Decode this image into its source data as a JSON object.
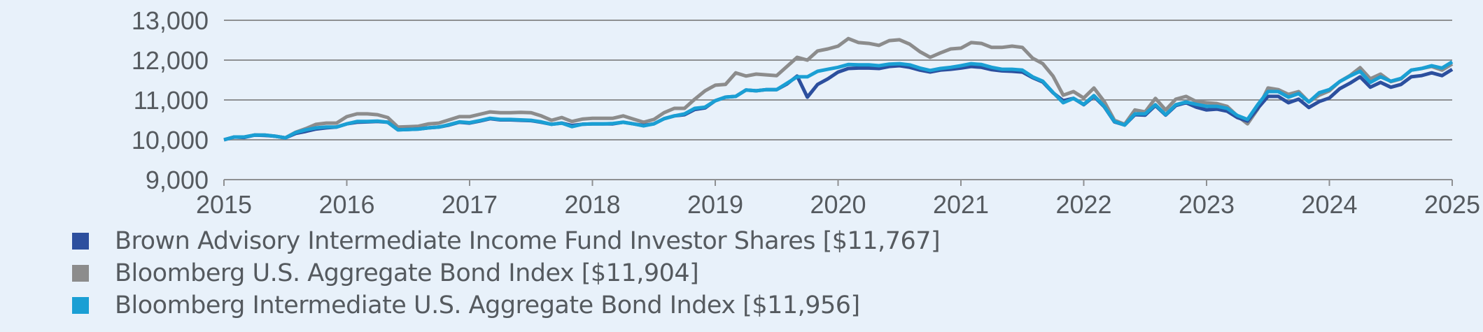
{
  "chart_data": {
    "type": "line",
    "title": "",
    "xlabel": "",
    "ylabel": "",
    "ylim": [
      9000,
      13000
    ],
    "xlim": [
      2015,
      2025
    ],
    "yticks": [
      "9,000",
      "10,000",
      "11,000",
      "12,000",
      "13,000"
    ],
    "ytick_values": [
      9000,
      10000,
      11000,
      12000,
      13000
    ],
    "xticks": [
      "2015",
      "2016",
      "2017",
      "2018",
      "2019",
      "2020",
      "2021",
      "2022",
      "2023",
      "2024",
      "2025"
    ],
    "xtick_values": [
      2015,
      2016,
      2017,
      2018,
      2019,
      2020,
      2021,
      2022,
      2023,
      2024,
      2025
    ],
    "grid": "horizontal",
    "legend_position": "bottom-left",
    "x_frequency": "monthly",
    "series": [
      {
        "name": "Brown Advisory Intermediate Income Fund Investor Shares",
        "legend_label": "Brown Advisory Intermediate Income Fund Investor Shares [$11,767]",
        "color": "#2c4f9e",
        "values": [
          10000,
          10070,
          10060,
          10120,
          10110,
          10090,
          10050,
          10160,
          10210,
          10270,
          10300,
          10320,
          10400,
          10440,
          10450,
          10460,
          10440,
          10250,
          10260,
          10270,
          10300,
          10320,
          10370,
          10440,
          10420,
          10470,
          10530,
          10500,
          10500,
          10490,
          10480,
          10440,
          10390,
          10420,
          10360,
          10390,
          10400,
          10400,
          10400,
          10440,
          10400,
          10360,
          10400,
          10530,
          10600,
          10630,
          10760,
          10800,
          10980,
          11070,
          11090,
          11250,
          11230,
          11260,
          11260,
          11400,
          11600,
          11070,
          11390,
          11530,
          11700,
          11790,
          11800,
          11800,
          11790,
          11840,
          11860,
          11820,
          11750,
          11700,
          11750,
          11770,
          11800,
          11840,
          11820,
          11760,
          11730,
          11720,
          11700,
          11560,
          11450,
          11180,
          10980,
          11040,
          10880,
          11090,
          10830,
          10450,
          10370,
          10630,
          10620,
          10860,
          10620,
          10860,
          10930,
          10820,
          10750,
          10770,
          10720,
          10560,
          10470,
          10790,
          11090,
          11090,
          10930,
          11020,
          10810,
          10960,
          11050,
          11280,
          11420,
          11580,
          11320,
          11440,
          11320,
          11390,
          11580,
          11610,
          11680,
          11610,
          11767
        ]
      },
      {
        "name": "Bloomberg U.S. Aggregate Bond Index",
        "legend_label": "Bloomberg U.S. Aggregate Bond Index [$11,904]",
        "color": "#8c8c8c",
        "values": [
          10000,
          10070,
          10070,
          10120,
          10120,
          10090,
          10050,
          10190,
          10280,
          10390,
          10420,
          10420,
          10580,
          10650,
          10650,
          10630,
          10560,
          10320,
          10330,
          10340,
          10400,
          10420,
          10500,
          10580,
          10580,
          10640,
          10700,
          10680,
          10680,
          10690,
          10680,
          10600,
          10490,
          10560,
          10460,
          10520,
          10540,
          10540,
          10540,
          10600,
          10520,
          10440,
          10510,
          10680,
          10790,
          10790,
          11020,
          11230,
          11370,
          11390,
          11680,
          11600,
          11650,
          11630,
          11610,
          11840,
          12070,
          12000,
          12230,
          12280,
          12350,
          12540,
          12440,
          12420,
          12370,
          12490,
          12510,
          12400,
          12210,
          12070,
          12180,
          12280,
          12300,
          12440,
          12420,
          12320,
          12320,
          12350,
          12320,
          12050,
          11910,
          11600,
          11120,
          11210,
          11050,
          11300,
          10960,
          10490,
          10390,
          10750,
          10700,
          11040,
          10750,
          11020,
          11090,
          10960,
          10930,
          10910,
          10840,
          10600,
          10400,
          10770,
          11300,
          11260,
          11140,
          11210,
          10950,
          11120,
          11230,
          11460,
          11610,
          11810,
          11530,
          11650,
          11460,
          11530,
          11750,
          11790,
          11840,
          11750,
          11904
        ]
      },
      {
        "name": "Bloomberg Intermediate U.S. Aggregate Bond Index",
        "legend_label": "Bloomberg Intermediate U.S. Aggregate Bond Index [$11,956]",
        "color": "#1a9fd4",
        "values": [
          10000,
          10070,
          10070,
          10120,
          10120,
          10090,
          10050,
          10180,
          10250,
          10300,
          10320,
          10320,
          10400,
          10460,
          10460,
          10470,
          10440,
          10250,
          10260,
          10270,
          10300,
          10320,
          10380,
          10450,
          10430,
          10480,
          10540,
          10510,
          10510,
          10500,
          10490,
          10450,
          10390,
          10420,
          10330,
          10390,
          10400,
          10400,
          10410,
          10440,
          10400,
          10350,
          10400,
          10530,
          10600,
          10650,
          10790,
          10820,
          10980,
          11070,
          11090,
          11250,
          11230,
          11260,
          11260,
          11420,
          11580,
          11580,
          11720,
          11770,
          11820,
          11890,
          11880,
          11880,
          11860,
          11900,
          11910,
          11880,
          11800,
          11740,
          11790,
          11820,
          11860,
          11910,
          11890,
          11820,
          11770,
          11770,
          11750,
          11580,
          11470,
          11190,
          10930,
          11040,
          10890,
          11110,
          10840,
          10460,
          10370,
          10650,
          10650,
          10880,
          10630,
          10880,
          10950,
          10890,
          10840,
          10840,
          10790,
          10610,
          10510,
          10880,
          11210,
          11210,
          11070,
          11160,
          10950,
          11180,
          11260,
          11460,
          11600,
          11720,
          11440,
          11580,
          11470,
          11540,
          11750,
          11790,
          11860,
          11800,
          11956
        ]
      }
    ]
  }
}
